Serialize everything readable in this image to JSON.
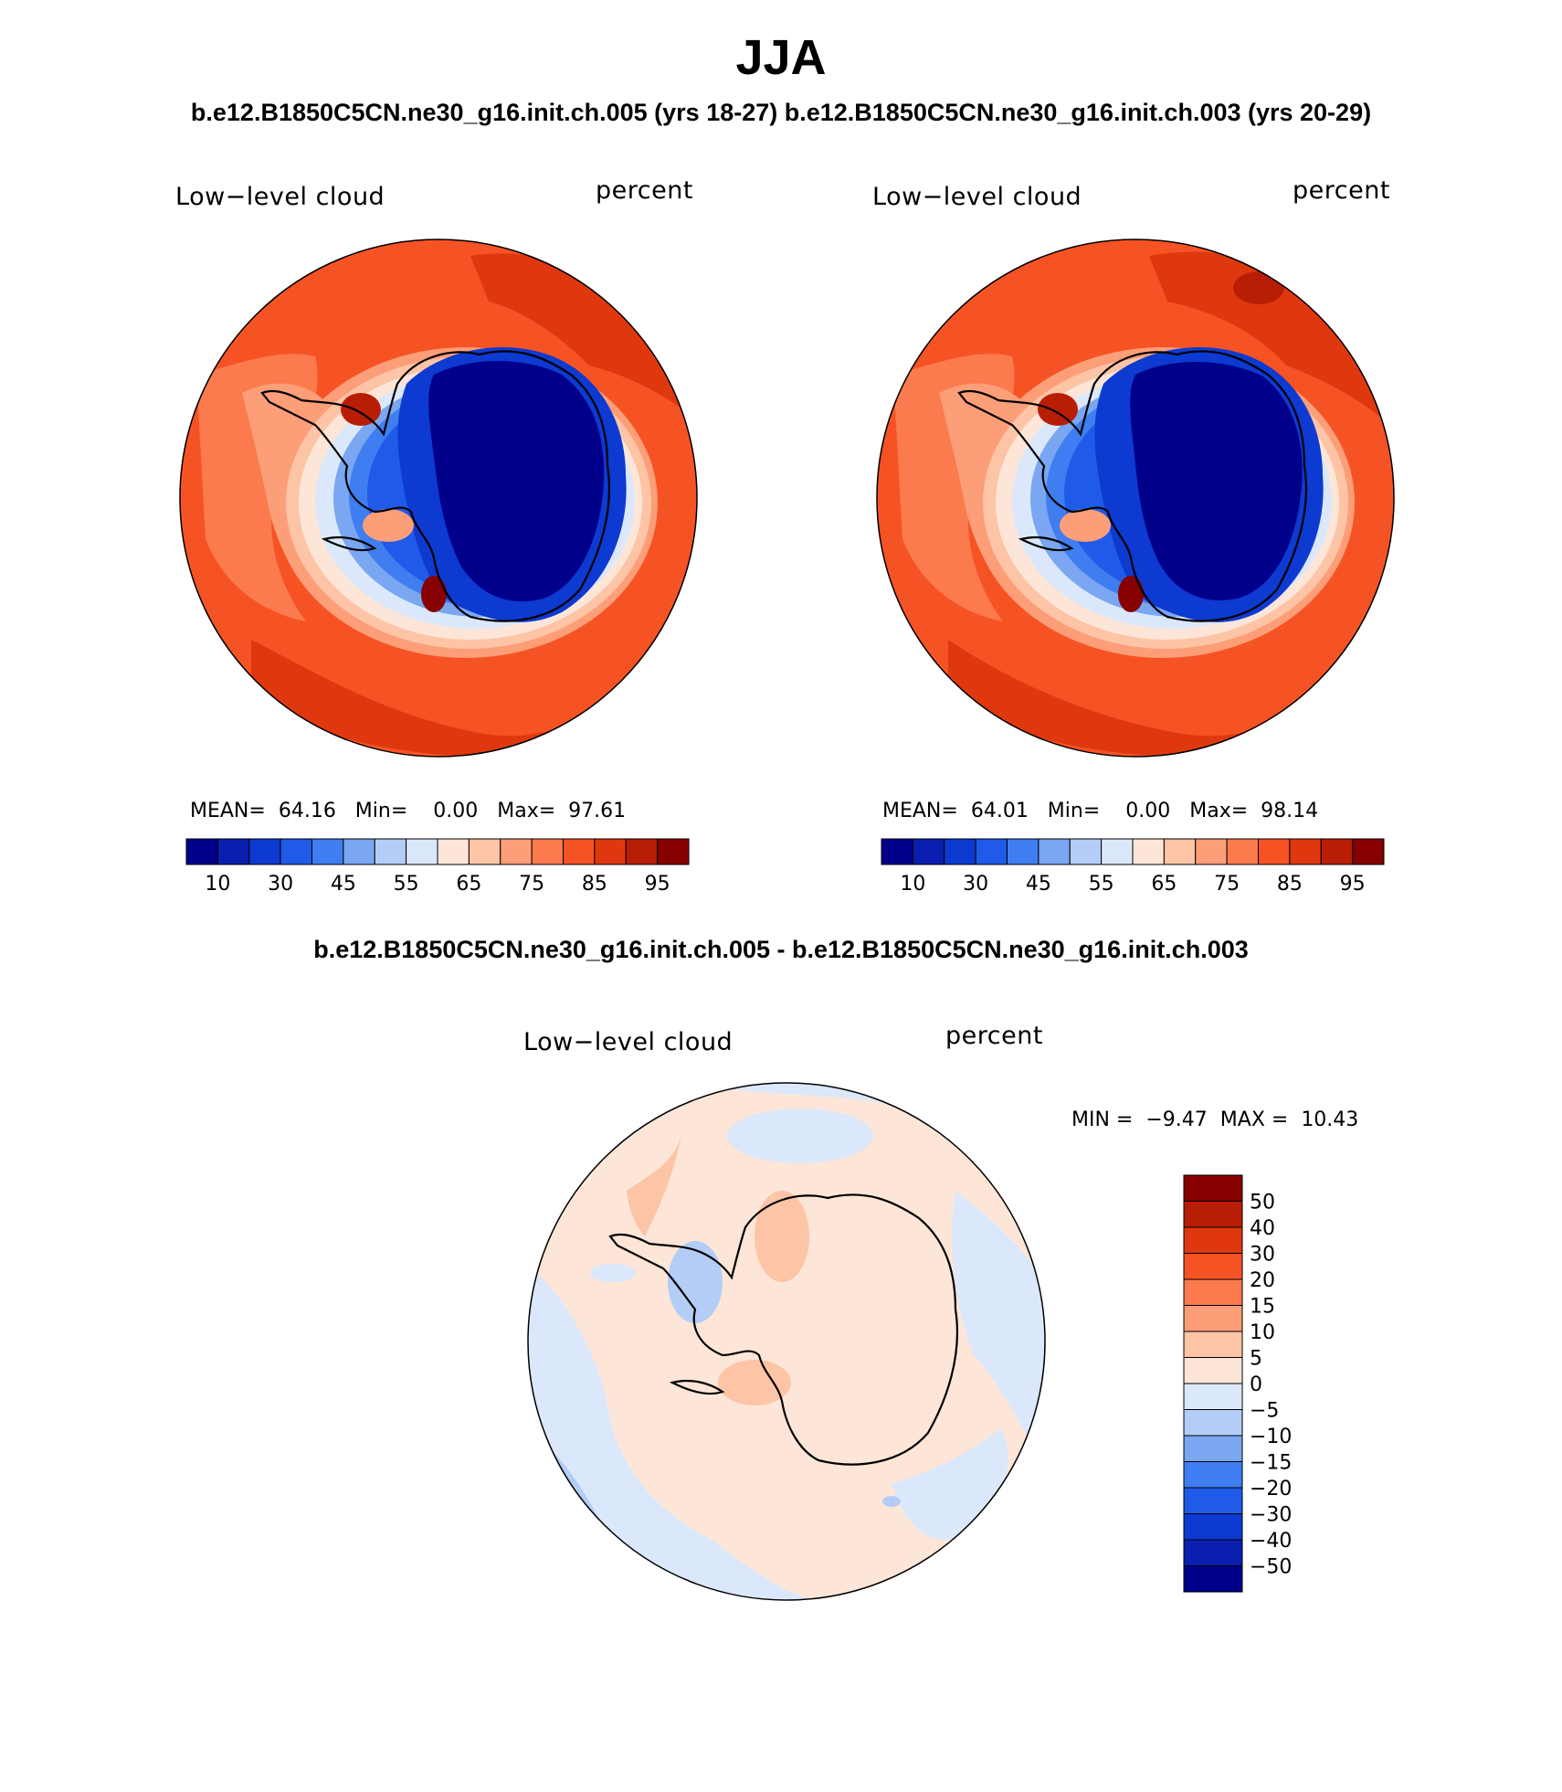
{
  "figure": {
    "season": "JJA",
    "subtitle": "b.e12.B1850C5CN.ne30_g16.init.ch.005 (yrs 18-27) b.e12.B1850C5CN.ne30_g16.init.ch.003 (yrs 20-29)",
    "diff_title": "b.e12.B1850C5CN.ne30_g16.init.ch.005 - b.e12.B1850C5CN.ne30_g16.init.ch.003"
  },
  "panels": [
    {
      "variable": "Low−level cloud",
      "units": "percent",
      "mean_label": "MEAN=",
      "mean": "64.16",
      "min_label": "Min=",
      "min": "0.00",
      "max_label": "Max=",
      "max": "97.61"
    },
    {
      "variable": "Low−level cloud",
      "units": "percent",
      "mean_label": "MEAN=",
      "mean": "64.01",
      "min_label": "Min=",
      "min": "0.00",
      "max_label": "Max=",
      "max": "98.14"
    }
  ],
  "diff_panel": {
    "variable": "Low−level cloud",
    "units": "percent",
    "min_label": "MIN =",
    "min": "−9.47",
    "max_label": "MAX =",
    "max": "10.43"
  },
  "colorbar_main": {
    "colors": [
      "#00008b",
      "#0a1fb0",
      "#0d3ad0",
      "#1f5ae8",
      "#3f7ef0",
      "#7aa6f2",
      "#b3cdf7",
      "#dbe8fb",
      "#fde6d8",
      "#fdc4a6",
      "#fc9e78",
      "#fb7a4e",
      "#f65325",
      "#e0380e",
      "#b81e06",
      "#870000"
    ],
    "tick_labels": [
      "10",
      "30",
      "45",
      "55",
      "65",
      "75",
      "85",
      "95"
    ]
  },
  "colorbar_diff": {
    "colors": [
      "#870000",
      "#b81e06",
      "#e0380e",
      "#f65325",
      "#fb7a4e",
      "#fc9e78",
      "#fdc4a6",
      "#fde6d8",
      "#dbe8fb",
      "#b3cdf7",
      "#7aa6f2",
      "#3f7ef0",
      "#1f5ae8",
      "#0d3ad0",
      "#0a1fb0",
      "#00008b"
    ],
    "tick_labels": [
      "50",
      "40",
      "30",
      "20",
      "15",
      "10",
      "5",
      "0",
      "−5",
      "−10",
      "−15",
      "−20",
      "−30",
      "−40",
      "−50"
    ]
  }
}
